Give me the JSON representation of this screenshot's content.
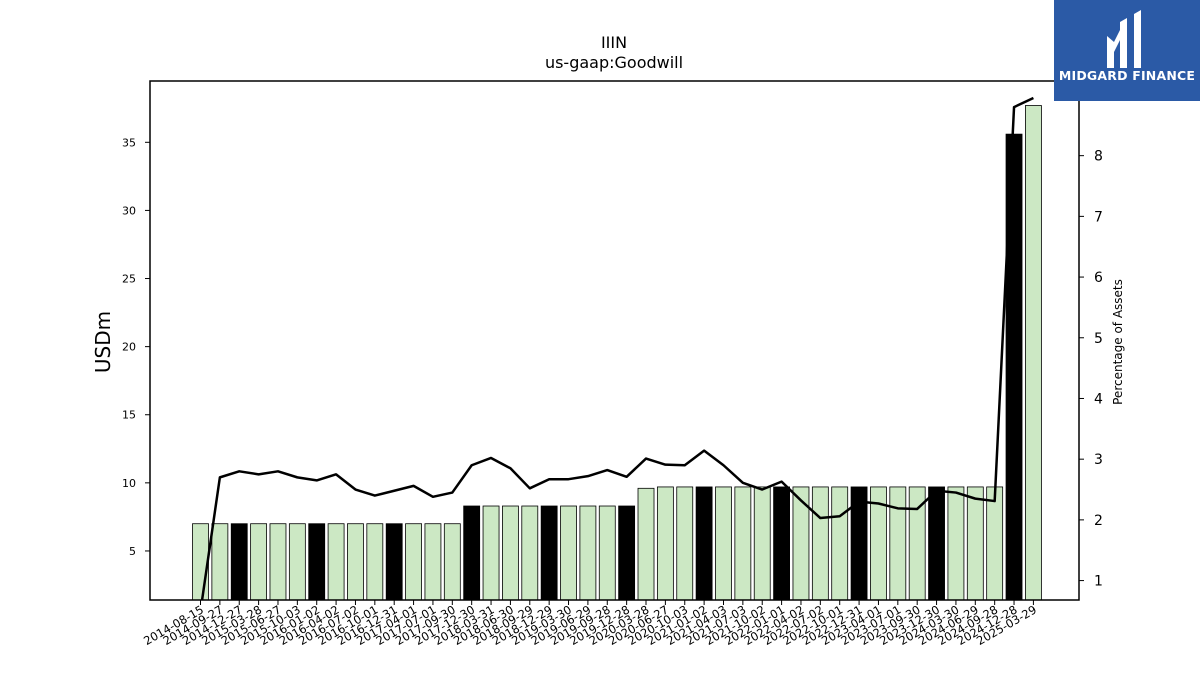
{
  "brand": {
    "name": "MIDGARD FINANCE",
    "bg_color": "#2b5aa6"
  },
  "chart_data": {
    "type": "bar",
    "title": "IIIN",
    "subtitle": "us-gaap:Goodwill",
    "ylabel": "USDm",
    "y2label": "Percentage of Assets",
    "ylim": [
      1.4,
      39.5
    ],
    "y2lim": [
      0.68,
      9.23
    ],
    "yticks": [
      5,
      10,
      15,
      20,
      25,
      30,
      35
    ],
    "y2ticks": [
      1,
      2,
      3,
      4,
      5,
      6,
      7,
      8,
      9
    ],
    "categories": [
      "2014-08-15",
      "2014-09-27",
      "2014-12-27",
      "2015-03-28",
      "2015-06-27",
      "2015-10-03",
      "2016-01-02",
      "2016-04-02",
      "2016-07-02",
      "2016-10-01",
      "2016-12-31",
      "2017-04-01",
      "2017-07-01",
      "2017-09-30",
      "2017-12-30",
      "2018-03-31",
      "2018-06-30",
      "2018-09-29",
      "2018-12-29",
      "2019-03-30",
      "2019-06-29",
      "2019-09-28",
      "2019-12-28",
      "2020-03-28",
      "2020-06-27",
      "2020-10-03",
      "2021-01-02",
      "2021-04-03",
      "2021-07-03",
      "2021-10-02",
      "2022-01-01",
      "2022-04-02",
      "2022-07-02",
      "2022-10-01",
      "2022-12-31",
      "2023-04-01",
      "2023-07-01",
      "2023-09-30",
      "2023-12-30",
      "2024-03-30",
      "2024-06-29",
      "2024-09-28",
      "2024-12-28",
      "2025-03-29"
    ],
    "series": [
      {
        "type": "bar",
        "values": [
          7.0,
          7.0,
          7.0,
          7.0,
          7.0,
          7.0,
          7.0,
          7.0,
          7.0,
          7.0,
          7.0,
          7.0,
          7.0,
          7.0,
          8.3,
          8.3,
          8.3,
          8.3,
          8.3,
          8.3,
          8.3,
          8.3,
          8.3,
          9.6,
          9.7,
          9.7,
          9.7,
          9.7,
          9.7,
          9.7,
          9.7,
          9.7,
          9.7,
          9.7,
          9.7,
          9.7,
          9.7,
          9.7,
          9.7,
          9.7,
          9.7,
          9.7,
          35.6,
          37.7
        ],
        "highlight_indices": [
          2,
          6,
          10,
          14,
          18,
          22,
          26,
          30,
          34,
          38,
          42
        ],
        "color": "#cce8c4",
        "highlight_color": "#000000",
        "edge_color": "#000000"
      },
      {
        "type": "line",
        "axis": "right",
        "values": [
          0.5,
          2.7,
          2.8,
          2.75,
          2.8,
          2.7,
          2.65,
          2.75,
          2.5,
          2.4,
          2.48,
          2.56,
          2.38,
          2.45,
          2.9,
          3.02,
          2.85,
          2.52,
          2.67,
          2.67,
          2.72,
          2.82,
          2.71,
          3.01,
          2.91,
          2.9,
          3.14,
          2.9,
          2.61,
          2.5,
          2.63,
          2.32,
          2.03,
          2.06,
          2.3,
          2.27,
          2.19,
          2.18,
          2.48,
          2.45,
          2.35,
          2.31,
          8.8,
          8.95
        ],
        "color": "#000000"
      }
    ],
    "grid": false,
    "legend": "none"
  }
}
